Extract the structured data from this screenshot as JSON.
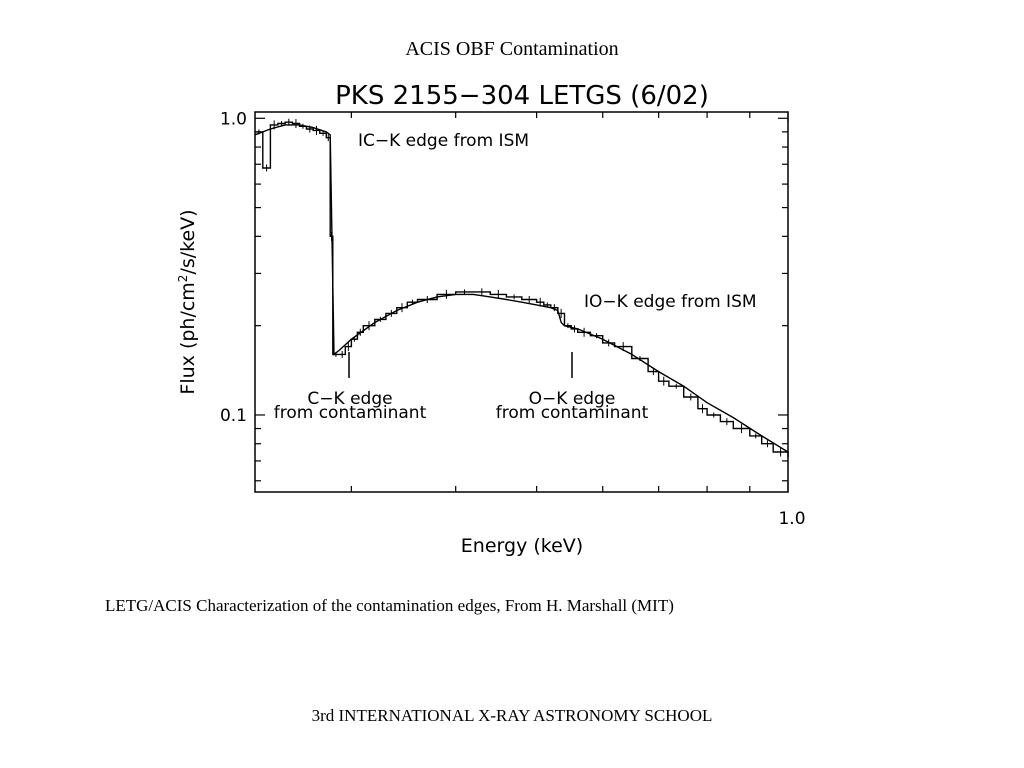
{
  "slide": {
    "title": "ACIS OBF Contamination",
    "caption": "LETG/ACIS Characterization of the contamination edges, From H. Marshall (MIT)",
    "footer": "3rd INTERNATIONAL X-RAY ASTRONOMY SCHOOL"
  },
  "chart_data": {
    "type": "line",
    "title": "PKS 2155−304 LETGS (6/02)",
    "xlabel": "Energy (keV)",
    "ylabel_main": "Flux (ph/cm",
    "ylabel_sup": "2",
    "ylabel_tail": "/s/keV)",
    "xscale": "log",
    "yscale": "log",
    "xlim": [
      0.23,
      1.0
    ],
    "ylim": [
      0.055,
      1.05
    ],
    "xticks": [
      {
        "value": 1.0,
        "label": "1.0"
      }
    ],
    "yticks": [
      {
        "value": 1.0,
        "label": "1.0"
      },
      {
        "value": 0.1,
        "label": "0.1"
      }
    ],
    "grid": false,
    "annotations": {
      "ism_c_edge": "ΙC−K edge from ISM",
      "ism_o_edge": "ΙO−K edge from ISM",
      "contam_c_edge": [
        "C−K edge",
        "from contaminant"
      ],
      "contam_o_edge": [
        "O−K edge",
        "from contaminant"
      ]
    },
    "series": [
      {
        "style": "histogram",
        "x": [
          0.23,
          0.235,
          0.24,
          0.245,
          0.25,
          0.255,
          0.26,
          0.265,
          0.27,
          0.275,
          0.28,
          0.283,
          0.285,
          0.29,
          0.295,
          0.3,
          0.305,
          0.31,
          0.32,
          0.33,
          0.34,
          0.35,
          0.36,
          0.38,
          0.4,
          0.42,
          0.44,
          0.46,
          0.48,
          0.5,
          0.51,
          0.52,
          0.53,
          0.54,
          0.55,
          0.56,
          0.58,
          0.6,
          0.62,
          0.65,
          0.68,
          0.7,
          0.72,
          0.75,
          0.78,
          0.8,
          0.83,
          0.86,
          0.9,
          0.93,
          0.96,
          1.0
        ],
        "y": [
          0.9,
          0.68,
          0.95,
          0.96,
          0.97,
          0.96,
          0.94,
          0.92,
          0.91,
          0.89,
          0.86,
          0.4,
          0.16,
          0.16,
          0.17,
          0.18,
          0.19,
          0.2,
          0.21,
          0.22,
          0.23,
          0.24,
          0.245,
          0.255,
          0.26,
          0.26,
          0.255,
          0.25,
          0.245,
          0.24,
          0.235,
          0.23,
          0.22,
          0.2,
          0.195,
          0.19,
          0.185,
          0.175,
          0.17,
          0.155,
          0.14,
          0.13,
          0.125,
          0.115,
          0.105,
          0.1,
          0.095,
          0.09,
          0.085,
          0.08,
          0.075,
          0.072
        ]
      },
      {
        "style": "model",
        "x": [
          0.23,
          0.24,
          0.25,
          0.26,
          0.27,
          0.28,
          0.283,
          0.286,
          0.29,
          0.3,
          0.32,
          0.34,
          0.36,
          0.38,
          0.4,
          0.42,
          0.44,
          0.46,
          0.48,
          0.5,
          0.52,
          0.53,
          0.535,
          0.54,
          0.56,
          0.6,
          0.65,
          0.7,
          0.75,
          0.8,
          0.86,
          0.93,
          1.0
        ],
        "y": [
          0.88,
          0.92,
          0.95,
          0.95,
          0.93,
          0.9,
          0.88,
          0.16,
          0.165,
          0.18,
          0.205,
          0.225,
          0.24,
          0.25,
          0.255,
          0.255,
          0.25,
          0.245,
          0.24,
          0.235,
          0.23,
          0.225,
          0.205,
          0.2,
          0.195,
          0.18,
          0.16,
          0.14,
          0.125,
          0.11,
          0.098,
          0.085,
          0.075
        ]
      }
    ]
  }
}
